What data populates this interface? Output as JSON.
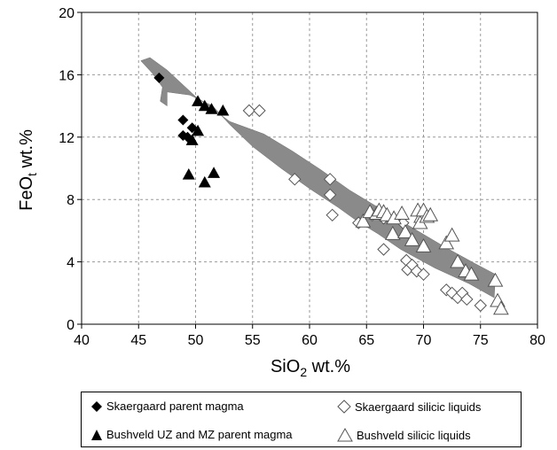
{
  "chart_data": {
    "type": "scatter",
    "title": "",
    "xlabel_main": "SiO",
    "xlabel_sub": "2",
    "xlabel_tail": " wt.%",
    "ylabel_main": "FeO",
    "ylabel_sub": "t",
    "ylabel_tail": " wt.%",
    "xlim": [
      40,
      80
    ],
    "ylim": [
      0,
      20
    ],
    "xticks": [
      40,
      45,
      50,
      55,
      60,
      65,
      70,
      75,
      80
    ],
    "yticks": [
      0,
      4,
      8,
      12,
      16,
      20
    ],
    "grid": true,
    "colors": {
      "band": "#8a8a8a",
      "filled": "#000000",
      "open": "#555555",
      "grid": "#9a9a9a"
    },
    "band": [
      [
        45.2,
        16.9
      ],
      [
        46.0,
        17.1
      ],
      [
        47.5,
        16.3
      ],
      [
        50.0,
        14.6
      ],
      [
        53.0,
        13.0
      ],
      [
        56.0,
        12.2
      ],
      [
        58.5,
        11.1
      ],
      [
        61.0,
        9.9
      ],
      [
        63.5,
        8.6
      ],
      [
        66.0,
        7.5
      ],
      [
        69.0,
        6.2
      ],
      [
        72.0,
        4.9
      ],
      [
        74.5,
        3.9
      ],
      [
        76.3,
        3.2
      ],
      [
        76.2,
        1.7
      ],
      [
        74.0,
        2.6
      ],
      [
        71.0,
        3.6
      ],
      [
        68.0,
        4.8
      ],
      [
        66.0,
        5.8
      ],
      [
        64.2,
        6.6
      ],
      [
        62.5,
        7.5
      ],
      [
        60.0,
        8.7
      ],
      [
        57.5,
        10.0
      ],
      [
        55.0,
        11.4
      ],
      [
        53.0,
        12.8
      ],
      [
        51.5,
        14.0
      ],
      [
        49.5,
        14.7
      ],
      [
        47.5,
        14.9
      ],
      [
        47.5,
        14.0
      ],
      [
        46.9,
        14.3
      ],
      [
        47.1,
        15.2
      ],
      [
        46.2,
        16.1
      ]
    ],
    "series": [
      {
        "name": "Skaergaard parent magma",
        "marker": "filled-diamond",
        "points": [
          [
            46.8,
            15.8
          ],
          [
            48.9,
            13.1
          ],
          [
            48.9,
            12.1
          ],
          [
            49.7,
            12.6
          ],
          [
            49.3,
            12.0
          ]
        ]
      },
      {
        "name": "Bushveld UZ and MZ parent magma",
        "marker": "filled-triangle",
        "points": [
          [
            50.2,
            14.3
          ],
          [
            50.8,
            14.0
          ],
          [
            51.4,
            13.8
          ],
          [
            52.4,
            13.7
          ],
          [
            50.2,
            12.4
          ],
          [
            49.7,
            11.8
          ],
          [
            49.4,
            9.6
          ],
          [
            50.8,
            9.1
          ],
          [
            51.6,
            9.7
          ]
        ]
      },
      {
        "name": "Skaergaard silicic liquids",
        "marker": "open-diamond",
        "points": [
          [
            54.7,
            13.7
          ],
          [
            55.6,
            13.7
          ],
          [
            58.7,
            9.3
          ],
          [
            61.8,
            9.3
          ],
          [
            61.8,
            8.3
          ],
          [
            62.0,
            7.0
          ],
          [
            64.3,
            6.5
          ],
          [
            65.5,
            7.0
          ],
          [
            66.5,
            6.8
          ],
          [
            66.5,
            4.8
          ],
          [
            68.2,
            6.5
          ],
          [
            68.5,
            4.1
          ],
          [
            68.6,
            3.5
          ],
          [
            69.0,
            3.8
          ],
          [
            69.4,
            3.4
          ],
          [
            70.0,
            3.2
          ],
          [
            72.0,
            2.2
          ],
          [
            72.5,
            2.0
          ],
          [
            73.0,
            1.7
          ],
          [
            73.4,
            2.0
          ],
          [
            73.8,
            1.6
          ],
          [
            75.0,
            1.2
          ]
        ]
      },
      {
        "name": "Bushveld silicic liquids",
        "marker": "open-triangle",
        "points": [
          [
            64.7,
            6.6
          ],
          [
            65.3,
            7.2
          ],
          [
            65.9,
            7.1
          ],
          [
            66.1,
            7.3
          ],
          [
            66.5,
            7.2
          ],
          [
            66.8,
            7.0
          ],
          [
            67.4,
            6.8
          ],
          [
            68.1,
            7.1
          ],
          [
            67.3,
            5.8
          ],
          [
            68.4,
            5.9
          ],
          [
            69.0,
            5.4
          ],
          [
            69.5,
            7.3
          ],
          [
            69.8,
            6.9
          ],
          [
            69.7,
            6.5
          ],
          [
            70.0,
            7.3
          ],
          [
            70.3,
            6.9
          ],
          [
            70.6,
            7.0
          ],
          [
            70.0,
            5.0
          ],
          [
            72.0,
            5.2
          ],
          [
            72.5,
            5.7
          ],
          [
            73.0,
            4.0
          ],
          [
            73.7,
            3.4
          ],
          [
            74.2,
            3.2
          ],
          [
            76.3,
            2.8
          ],
          [
            76.5,
            1.5
          ],
          [
            76.8,
            1.0
          ]
        ]
      }
    ],
    "legend": [
      {
        "label": "Skaergaard parent magma",
        "marker": "filled-diamond"
      },
      {
        "label": "Skaergaard silicic liquids",
        "marker": "open-diamond"
      },
      {
        "label": "Bushveld UZ and MZ parent magma",
        "marker": "filled-triangle"
      },
      {
        "label": "Bushveld silicic liquids",
        "marker": "open-triangle"
      }
    ],
    "legend_position": "bottom"
  }
}
